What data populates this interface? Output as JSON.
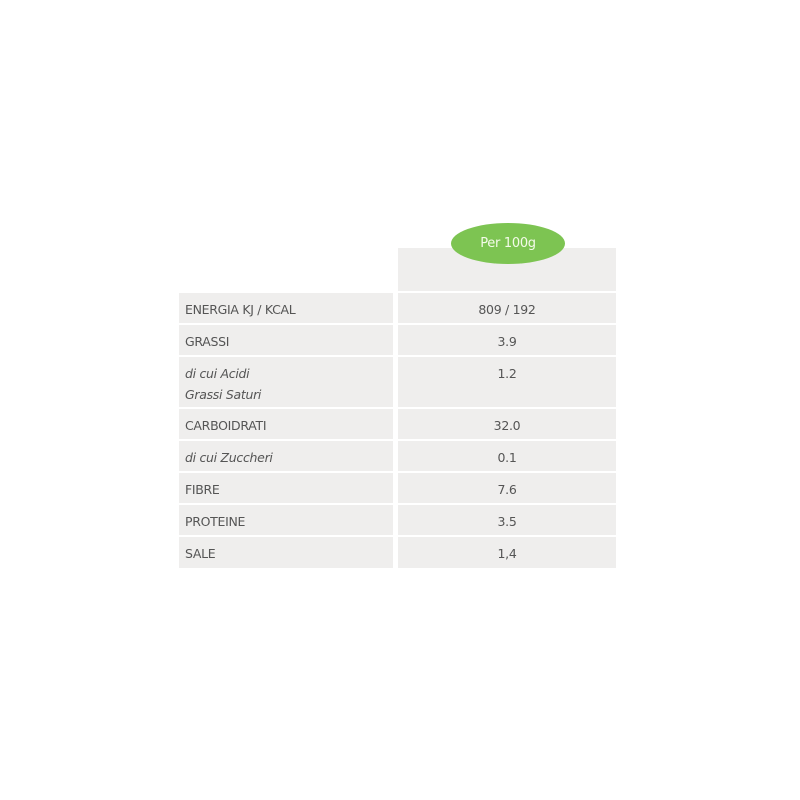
{
  "header": {
    "column_label": "Per 100g",
    "accent_color": "#7dc452"
  },
  "rows": [
    {
      "label": "ENERGIA KJ / KCAL",
      "value": "809 / 192",
      "italic": false
    },
    {
      "label": "GRASSI",
      "value": "3.9",
      "italic": false
    },
    {
      "label": "di cui Acidi",
      "label2": "Grassi Saturi",
      "value": "1.2",
      "italic": true
    },
    {
      "label": "CARBOIDRATI",
      "value": "32.0",
      "italic": false
    },
    {
      "label": "di cui Zuccheri",
      "value": "0.1",
      "italic": true
    },
    {
      "label": "FIBRE",
      "value": "7.6",
      "italic": false
    },
    {
      "label": "PROTEINE",
      "value": "3.5",
      "italic": false
    },
    {
      "label": "SALE",
      "value": "1,4",
      "italic": false
    }
  ]
}
